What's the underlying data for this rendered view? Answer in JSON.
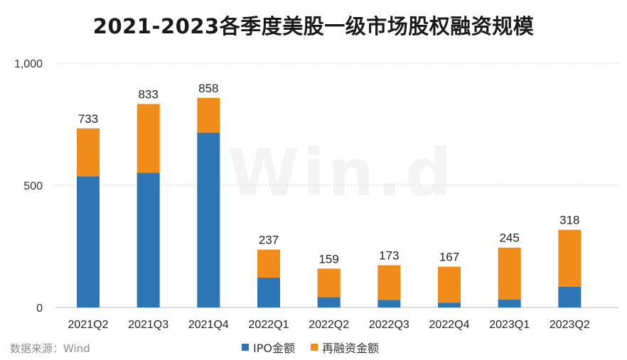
{
  "chart_data": {
    "type": "bar",
    "stacked": true,
    "title": "2021-2023各季度美股一级市场股权融资规模",
    "categories": [
      "2021Q2",
      "2021Q3",
      "2021Q4",
      "2022Q1",
      "2022Q2",
      "2022Q3",
      "2022Q4",
      "2023Q1",
      "2023Q2"
    ],
    "series": [
      {
        "name": "IPO金额",
        "color": "#2e75b6",
        "values": [
          537,
          551,
          716,
          122,
          42,
          31,
          20,
          32,
          85
        ]
      },
      {
        "name": "再融资金额",
        "color": "#f08c1a",
        "values": [
          196,
          282,
          142,
          115,
          117,
          142,
          147,
          213,
          233
        ]
      }
    ],
    "totals": [
      733,
      833,
      858,
      237,
      159,
      173,
      167,
      245,
      318
    ],
    "ylim": [
      0,
      1000
    ],
    "yticks": [
      0,
      500,
      1000
    ],
    "ytick_labels": [
      "0",
      "500",
      "1,000"
    ],
    "grid": true,
    "legend_position": "bottom",
    "watermark": "Win.d"
  },
  "source_note": "数据来源：Wind"
}
